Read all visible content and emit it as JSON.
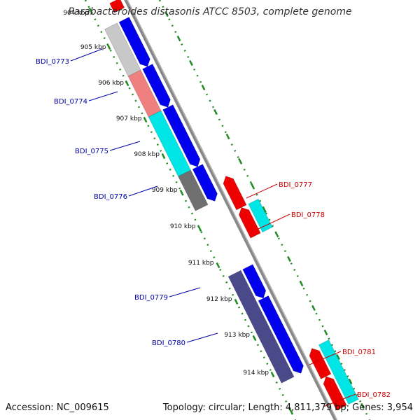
{
  "map": {
    "title": "Parabacteroides distasonis ATCC 8503, complete genome",
    "accession_text": "Accession: NC_009615",
    "summary_text": "Topology: circular; Length: 4,811,379 bp; Genes: 3,954",
    "ruler_labels": [
      "904 kbp",
      "905 kbp",
      "906 kbp",
      "907 kbp",
      "908 kbp",
      "909 kbp",
      "910 kbp",
      "911 kbp",
      "912 kbp",
      "913 kbp",
      "914 kbp"
    ],
    "genes_left": [
      {
        "label": "BDI_0773",
        "color": "#0000aa"
      },
      {
        "label": "BDI_0774",
        "color": "#0000aa"
      },
      {
        "label": "BDI_0775",
        "color": "#0000aa"
      },
      {
        "label": "BDI_0776",
        "color": "#0000aa"
      },
      {
        "label": "BDI_0779",
        "color": "#0000aa"
      },
      {
        "label": "BDI_0780",
        "color": "#0000aa"
      }
    ],
    "genes_right": [
      {
        "label": "BDI_0777",
        "color": "#cc0000"
      },
      {
        "label": "BDI_0778",
        "color": "#cc0000"
      },
      {
        "label": "BDI_0781",
        "color": "#cc0000"
      },
      {
        "label": "BDI_0782",
        "color": "#cc0000"
      }
    ],
    "colors": {
      "backbone": "#888888",
      "ticks": "#228b22",
      "forward_cds": "#0000ee",
      "reverse_cds": "#ee0000",
      "cog_light_grey": "#c8c8c8",
      "cog_salmon": "#f08080",
      "cog_cyan": "#00e5e5",
      "cog_dark_grey": "#707070",
      "cog_slate": "#4a4a8a"
    }
  }
}
